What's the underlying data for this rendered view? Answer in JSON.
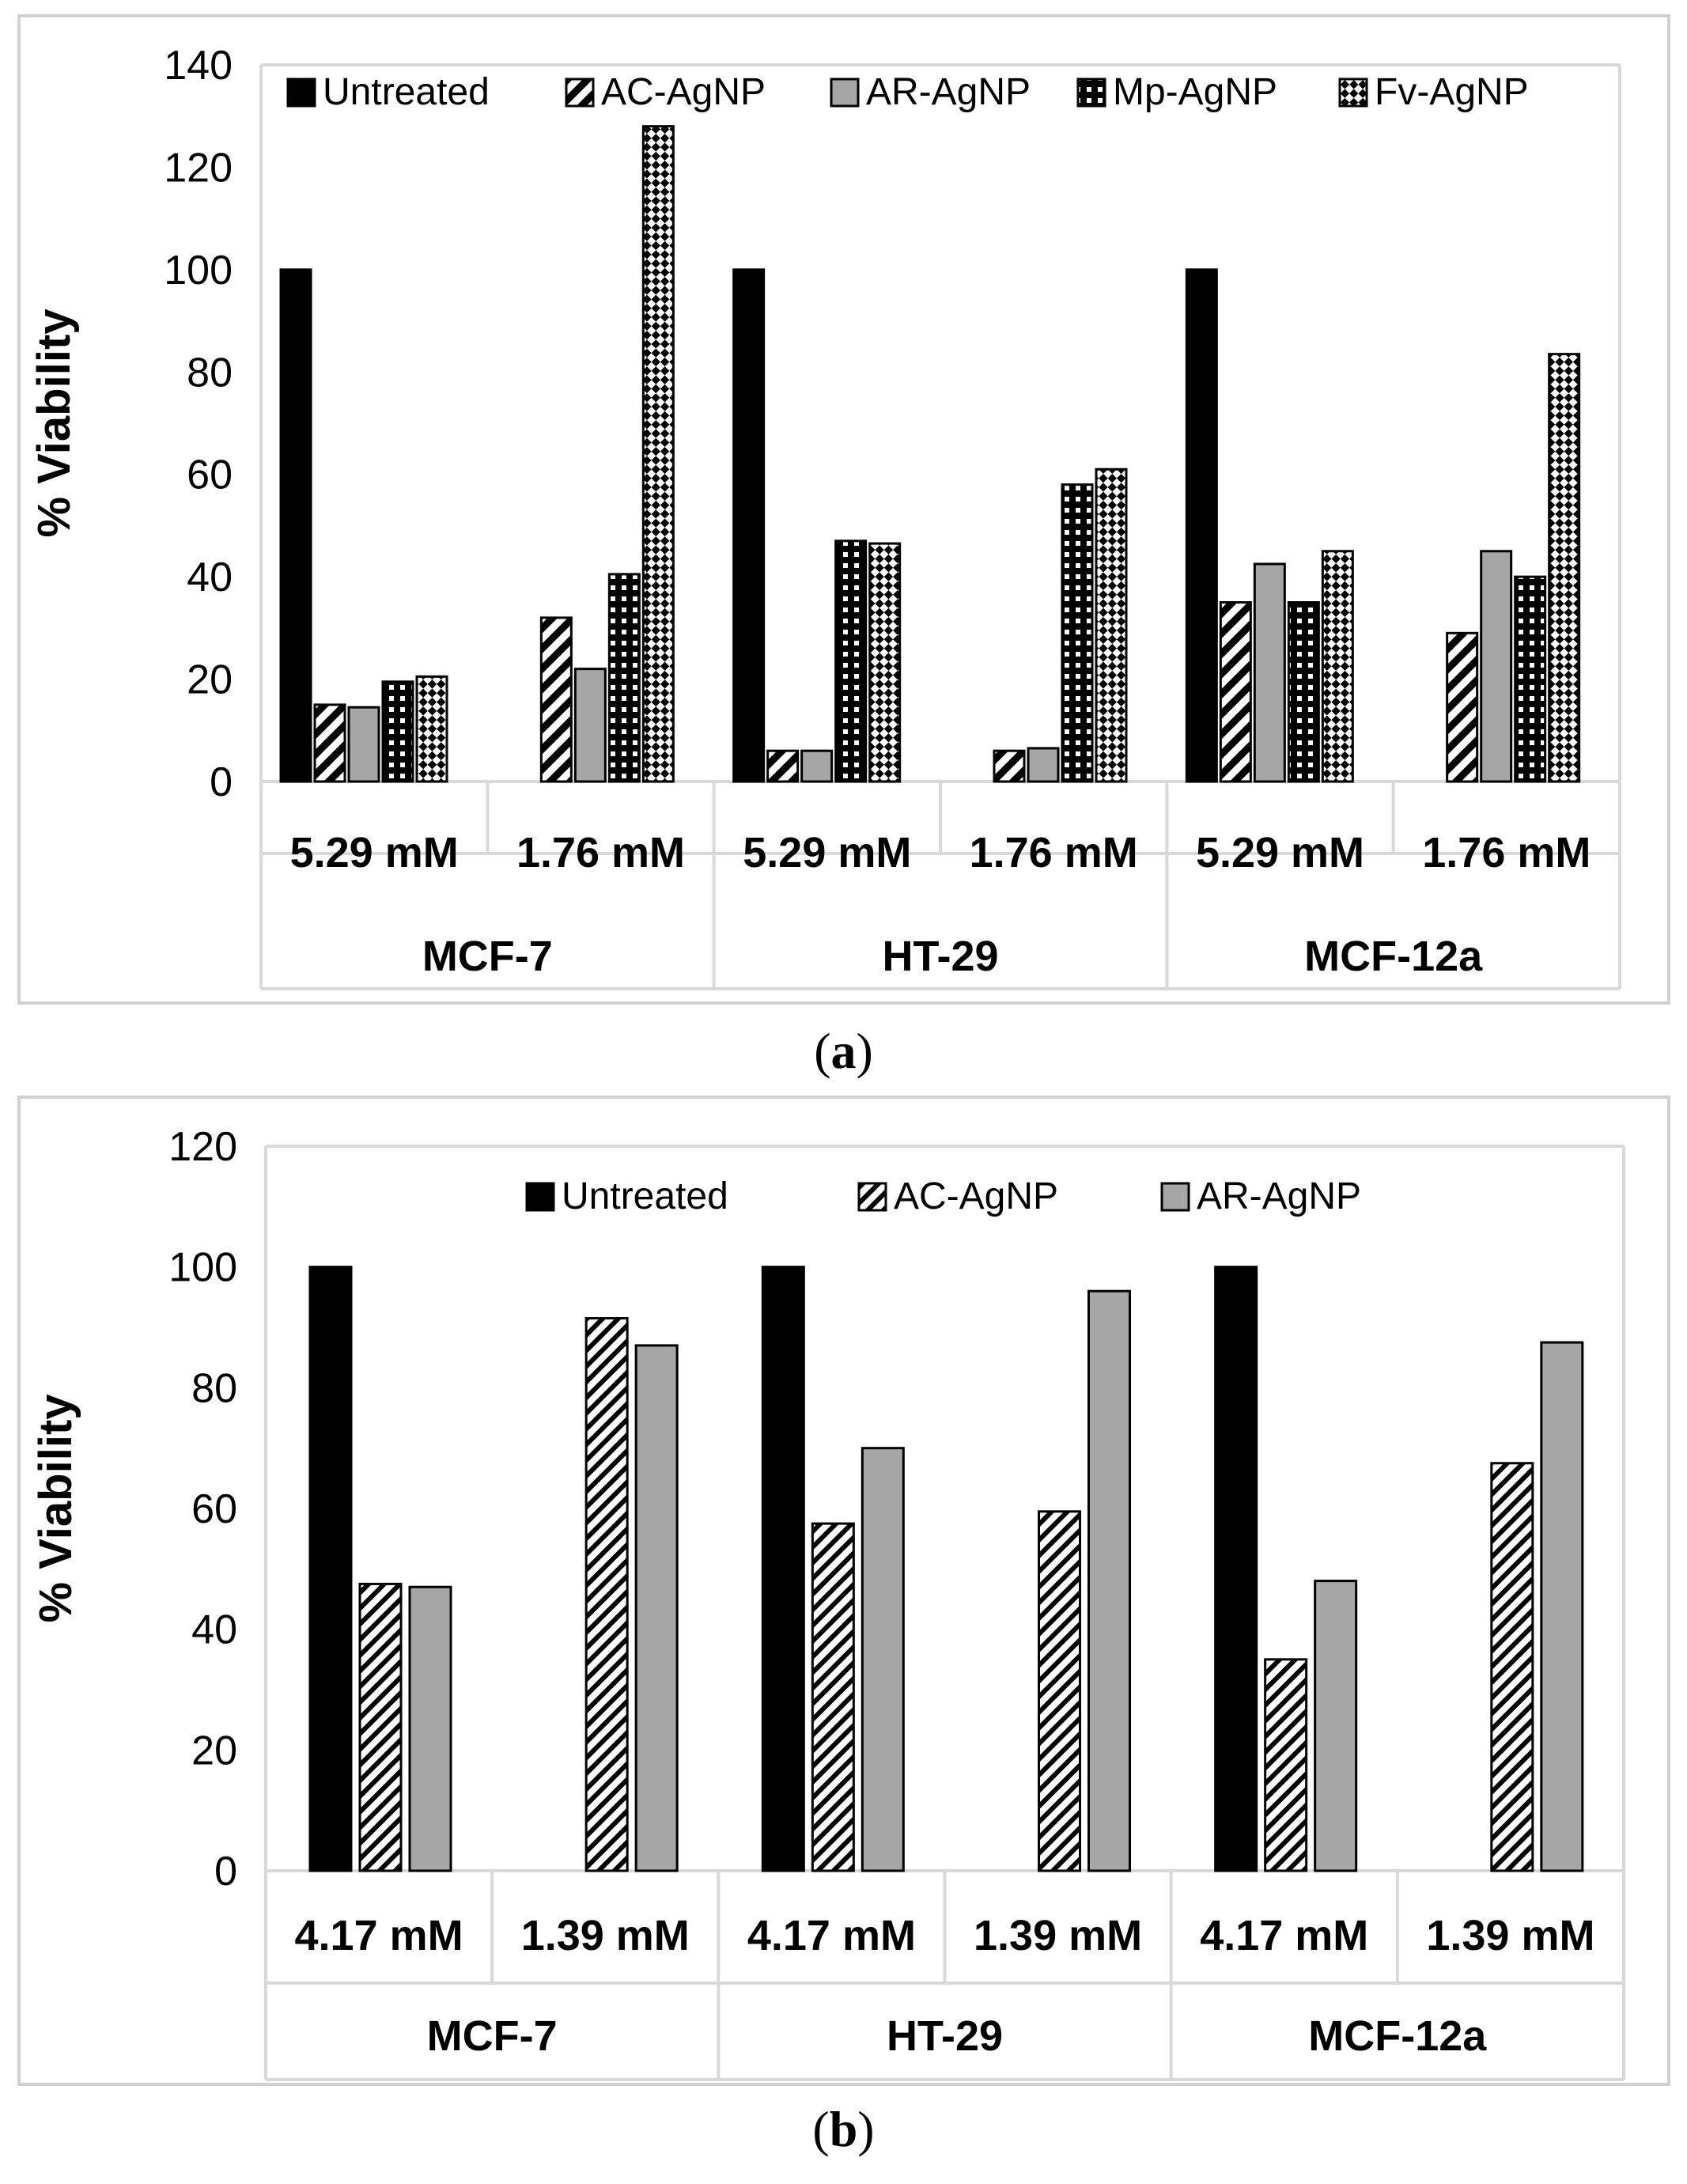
{
  "chart_data": [
    {
      "type": "bar",
      "panel_label": "a",
      "ylabel": "% Viability",
      "ylim": [
        0,
        140
      ],
      "yticks": [
        0,
        20,
        40,
        60,
        80,
        100,
        120,
        140
      ],
      "legend_position": "top",
      "categories": [
        "5.29 mM",
        "1.76 mM",
        "5.29 mM",
        "1.76 mM",
        "5.29 mM",
        "1.76 mM"
      ],
      "groups": [
        {
          "label": "MCF-7",
          "span": [
            0,
            1
          ]
        },
        {
          "label": "HT-29",
          "span": [
            2,
            3
          ]
        },
        {
          "label": "MCF-12a",
          "span": [
            4,
            5
          ]
        }
      ],
      "series": [
        {
          "name": "Untreated",
          "pattern": "solid-black",
          "values": [
            100,
            null,
            100,
            null,
            100,
            null
          ]
        },
        {
          "name": "AC-AgNP",
          "pattern": "diagonal-hatch",
          "values": [
            15,
            32,
            6,
            6,
            35,
            29
          ]
        },
        {
          "name": "AR-AgNP",
          "pattern": "solid-gray",
          "values": [
            14.5,
            22,
            6,
            6.5,
            42.5,
            45
          ]
        },
        {
          "name": "Mp-AgNP",
          "pattern": "dotted-black",
          "values": [
            19.5,
            40.5,
            47,
            58,
            35,
            40
          ]
        },
        {
          "name": "Fv-AgNP",
          "pattern": "checker-white",
          "values": [
            20.5,
            128,
            46.5,
            61,
            45,
            83.5
          ]
        }
      ],
      "colors": {
        "untreated": "#000000",
        "gray": "#a6a6a6",
        "axis": "#d9d9d9"
      }
    },
    {
      "type": "bar",
      "panel_label": "b",
      "ylabel": "% Viability",
      "ylim": [
        0,
        120
      ],
      "yticks": [
        0,
        20,
        40,
        60,
        80,
        100,
        120
      ],
      "legend_position": "top",
      "categories": [
        "4.17 mM",
        "1.39 mM",
        "4.17 mM",
        "1.39 mM",
        "4.17 mM",
        "1.39 mM"
      ],
      "groups": [
        {
          "label": "MCF-7",
          "span": [
            0,
            1
          ]
        },
        {
          "label": "HT-29",
          "span": [
            2,
            3
          ]
        },
        {
          "label": "MCF-12a",
          "span": [
            4,
            5
          ]
        }
      ],
      "series": [
        {
          "name": "Untreated",
          "pattern": "solid-black",
          "values": [
            100,
            null,
            100,
            null,
            100,
            null
          ]
        },
        {
          "name": "AC-AgNP",
          "pattern": "fine-diagonal",
          "values": [
            47.5,
            91.5,
            57.5,
            59.5,
            35,
            67.5
          ]
        },
        {
          "name": "AR-AgNP",
          "pattern": "solid-gray",
          "values": [
            47,
            87,
            70,
            96,
            48,
            87.5
          ]
        }
      ],
      "colors": {
        "untreated": "#000000",
        "gray": "#a6a6a6",
        "axis": "#d9d9d9"
      }
    }
  ]
}
